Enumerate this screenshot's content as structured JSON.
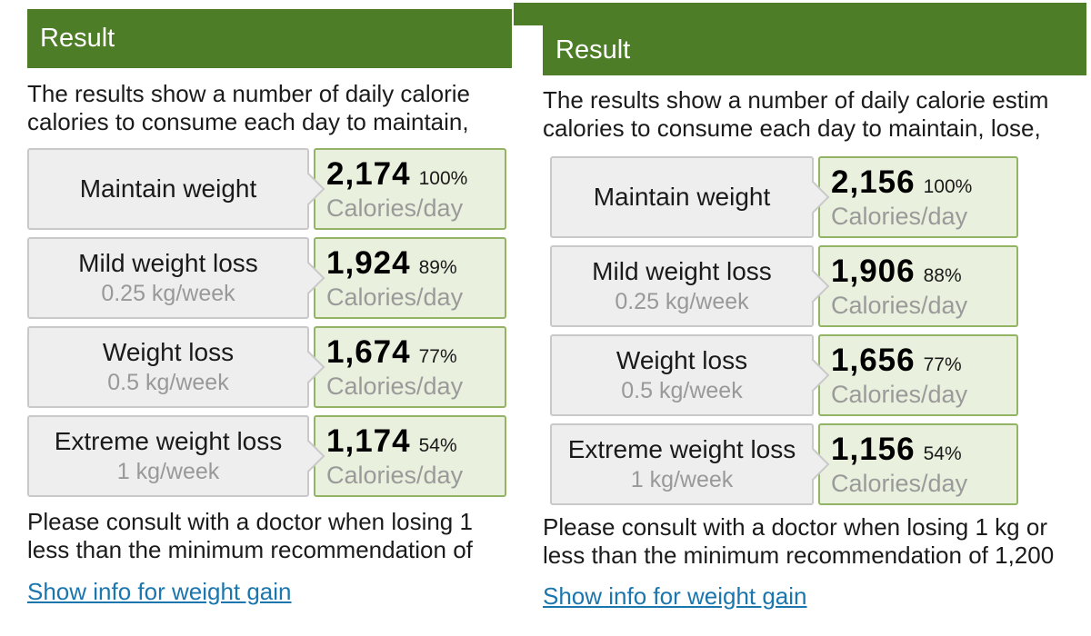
{
  "colors": {
    "header_green": "#4e7d28",
    "value_box_bg": "#e9f0dd",
    "value_box_border": "#93b365",
    "label_box_bg": "#eeeeee",
    "label_box_border": "#c9c9c9",
    "link_blue": "#1b76ae",
    "muted_gray": "#999999"
  },
  "panels": [
    {
      "header": "Result",
      "intro_lines": [
        "The results show a number of daily calorie",
        "calories to consume each day to maintain,"
      ],
      "rows": [
        {
          "label": "Maintain weight",
          "sublabel": "",
          "value": "2,174",
          "percent": "100%",
          "unit": "Calories/day"
        },
        {
          "label": "Mild weight loss",
          "sublabel": "0.25 kg/week",
          "value": "1,924",
          "percent": "89%",
          "unit": "Calories/day"
        },
        {
          "label": "Weight loss",
          "sublabel": "0.5 kg/week",
          "value": "1,674",
          "percent": "77%",
          "unit": "Calories/day"
        },
        {
          "label": "Extreme weight loss",
          "sublabel": "1 kg/week",
          "value": "1,174",
          "percent": "54%",
          "unit": "Calories/day"
        }
      ],
      "note_lines": [
        "Please consult with a doctor when losing 1",
        "less than the minimum recommendation of"
      ],
      "link_label": "Show info for weight gain"
    },
    {
      "header": "Result",
      "intro_lines": [
        "The results show a number of daily calorie estim",
        "calories to consume each day to maintain, lose,"
      ],
      "rows": [
        {
          "label": "Maintain weight",
          "sublabel": "",
          "value": "2,156",
          "percent": "100%",
          "unit": "Calories/day"
        },
        {
          "label": "Mild weight loss",
          "sublabel": "0.25 kg/week",
          "value": "1,906",
          "percent": "88%",
          "unit": "Calories/day"
        },
        {
          "label": "Weight loss",
          "sublabel": "0.5 kg/week",
          "value": "1,656",
          "percent": "77%",
          "unit": "Calories/day"
        },
        {
          "label": "Extreme weight loss",
          "sublabel": "1 kg/week",
          "value": "1,156",
          "percent": "54%",
          "unit": "Calories/day"
        }
      ],
      "note_lines": [
        "Please consult with a doctor when losing 1 kg or",
        "less than the minimum recommendation of 1,200"
      ],
      "link_label": "Show info for weight gain"
    }
  ]
}
